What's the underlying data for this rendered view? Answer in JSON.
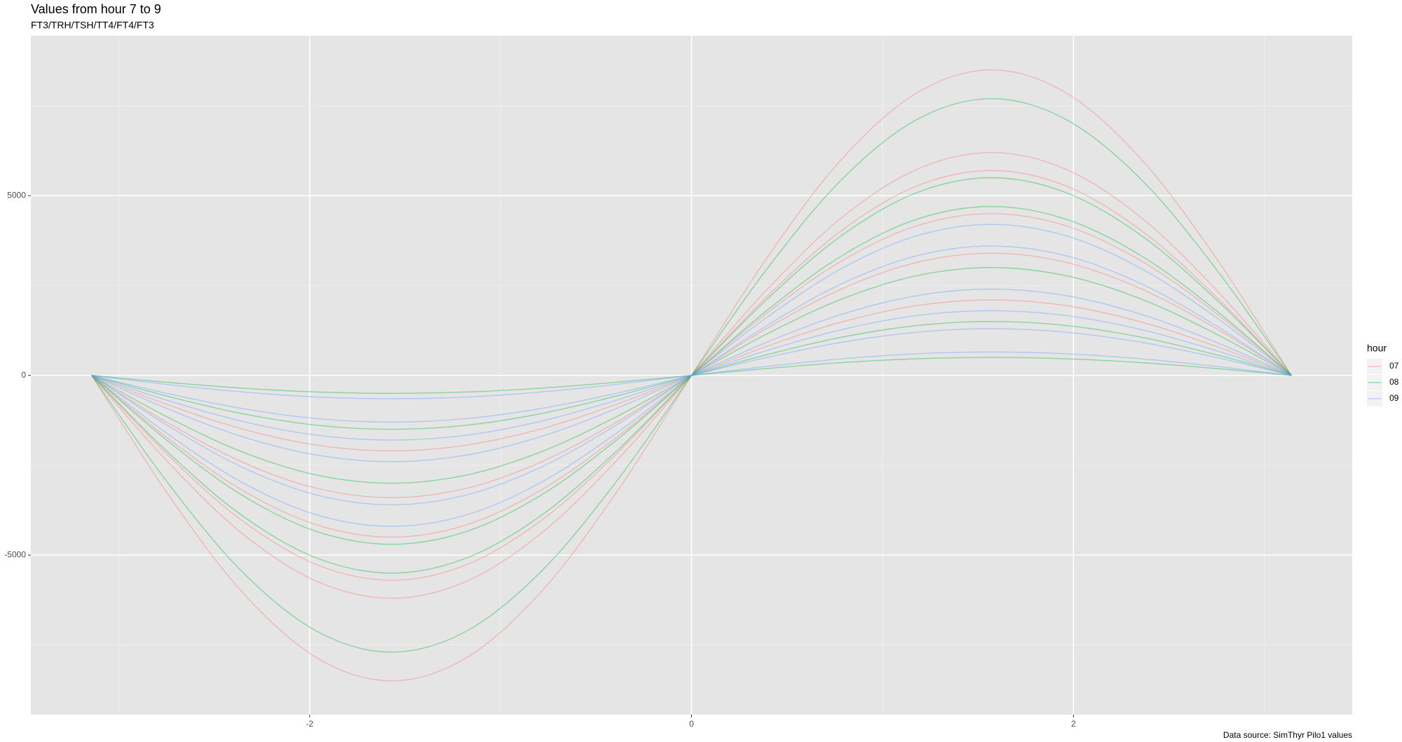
{
  "chart_data": {
    "type": "line",
    "title": "Values from hour 7 to 9",
    "subtitle": "FT3/TRH/TSH/TT4/FT4/FT3",
    "caption": "Data source: SimThyr Pilo1 values",
    "legend_title": "hour",
    "legend_position": "right",
    "grid": true,
    "x": [
      -3.1416,
      -2.7489,
      -2.3562,
      -1.9635,
      -1.5708,
      -1.1781,
      -0.7854,
      -0.3927,
      0,
      0.3927,
      0.7854,
      1.1781,
      1.5708,
      1.9635,
      2.3562,
      2.7489,
      3.1416
    ],
    "xlim": [
      -3.46,
      3.46
    ],
    "xticks": [
      -2,
      0,
      2
    ],
    "x_minor_breaks": [
      -3,
      -1,
      1,
      3
    ],
    "ylim": [
      -9440,
      9450
    ],
    "yticks": [
      -5000,
      0,
      5000
    ],
    "y_minor_breaks": [
      -7500,
      -2500,
      2500,
      7500
    ],
    "series": [
      {
        "name": "07",
        "color": "#F8766D",
        "values": [
          [
            0,
            -3253,
            -6010,
            -7853,
            -8500,
            -7853,
            -6010,
            -3253,
            0,
            3253,
            6010,
            7853,
            8500,
            7853,
            6010,
            3253,
            0
          ],
          [
            0,
            -2373,
            -4384,
            -5728,
            -6200,
            -5728,
            -4384,
            -2373,
            0,
            2373,
            4384,
            5728,
            6200,
            5728,
            4384,
            2373,
            0
          ],
          [
            0,
            -2181,
            -4030,
            -5266,
            -5700,
            -5266,
            -4030,
            -2181,
            0,
            2181,
            4030,
            5266,
            5700,
            5266,
            4030,
            2181,
            0
          ],
          [
            0,
            -1722,
            -3182,
            -4158,
            -4500,
            -4158,
            -3182,
            -1722,
            0,
            1722,
            3182,
            4158,
            4500,
            4158,
            3182,
            1722,
            0
          ],
          [
            0,
            -1301,
            -2404,
            -3141,
            -3400,
            -3141,
            -2404,
            -1301,
            0,
            1301,
            2404,
            3141,
            3400,
            3141,
            2404,
            1301,
            0
          ],
          [
            0,
            -804,
            -1485,
            -1940,
            -2100,
            -1940,
            -1485,
            -804,
            0,
            804,
            1485,
            1940,
            2100,
            1940,
            1485,
            804,
            0
          ]
        ]
      },
      {
        "name": "08",
        "color": "#00BA38",
        "values": [
          [
            0,
            -2947,
            -5445,
            -7114,
            -7700,
            -7114,
            -5445,
            -2947,
            0,
            2947,
            5445,
            7114,
            7700,
            7114,
            5445,
            2947,
            0
          ],
          [
            0,
            -2105,
            -3889,
            -5081,
            -5500,
            -5081,
            -3889,
            -2105,
            0,
            2105,
            3889,
            5081,
            5500,
            5081,
            3889,
            2105,
            0
          ],
          [
            0,
            -1799,
            -3323,
            -4342,
            -4700,
            -4342,
            -3323,
            -1799,
            0,
            1799,
            3323,
            4342,
            4700,
            4342,
            3323,
            1799,
            0
          ],
          [
            0,
            -1148,
            -2121,
            -2772,
            -3000,
            -2772,
            -2121,
            -1148,
            0,
            1148,
            2121,
            2772,
            3000,
            2772,
            2121,
            1148,
            0
          ],
          [
            0,
            -574,
            -1061,
            -1386,
            -1500,
            -1386,
            -1061,
            -574,
            0,
            574,
            1061,
            1386,
            1500,
            1386,
            1061,
            574,
            0
          ],
          [
            0,
            -191,
            -354,
            -462,
            -500,
            -462,
            -354,
            -191,
            0,
            191,
            354,
            462,
            500,
            462,
            354,
            191,
            0
          ]
        ]
      },
      {
        "name": "09",
        "color": "#619CFF",
        "values": [
          [
            0,
            -1607,
            -2970,
            -3880,
            -4200,
            -3880,
            -2970,
            -1607,
            0,
            1607,
            2970,
            3880,
            4200,
            3880,
            2970,
            1607,
            0
          ],
          [
            0,
            -1378,
            -2546,
            -3326,
            -3600,
            -3326,
            -2546,
            -1378,
            0,
            1378,
            2546,
            3326,
            3600,
            3326,
            2546,
            1378,
            0
          ],
          [
            0,
            -918,
            -1697,
            -2217,
            -2400,
            -2217,
            -1697,
            -918,
            0,
            918,
            1697,
            2217,
            2400,
            2217,
            1697,
            918,
            0
          ],
          [
            0,
            -689,
            -1273,
            -1663,
            -1800,
            -1663,
            -1273,
            -689,
            0,
            689,
            1273,
            1663,
            1800,
            1663,
            1273,
            689,
            0
          ],
          [
            0,
            -498,
            -919,
            -1201,
            -1300,
            -1201,
            -919,
            -498,
            0,
            498,
            919,
            1201,
            1300,
            1201,
            919,
            498,
            0
          ],
          [
            0,
            -249,
            -460,
            -601,
            -650,
            -601,
            -460,
            -249,
            0,
            249,
            460,
            601,
            650,
            601,
            460,
            249,
            0
          ]
        ]
      }
    ]
  }
}
